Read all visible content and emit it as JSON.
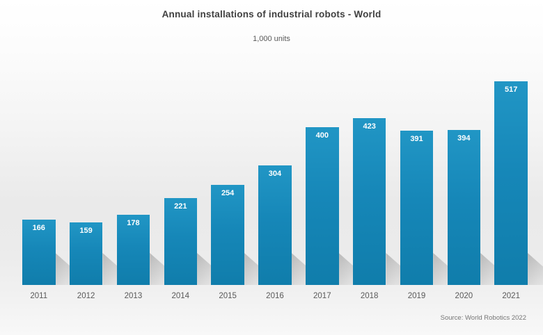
{
  "chart": {
    "title": "Annual installations of industrial robots - World",
    "subtitle": "1,000 units",
    "source": "Source: World Robotics 2022"
  },
  "chart_data": {
    "type": "bar",
    "title": "Annual installations of industrial robots - World",
    "subtitle": "1,000 units",
    "categories": [
      "2011",
      "2012",
      "2013",
      "2014",
      "2015",
      "2016",
      "2017",
      "2018",
      "2019",
      "2020",
      "2021"
    ],
    "values": [
      166,
      159,
      178,
      221,
      254,
      304,
      400,
      423,
      391,
      394,
      517
    ],
    "unit": "1,000 units",
    "xlabel": "",
    "ylabel": "",
    "ylim": [
      0,
      540
    ],
    "grid": false,
    "axes_visible": false,
    "value_labels_position": "inside-top",
    "legend": "none",
    "source": "Source: World Robotics 2022",
    "colors": {
      "bar": "#1687b8",
      "bar_top": "#2196c5",
      "value_label": "#ffffff",
      "title": "#3f3f3f",
      "axis_label": "#595959",
      "source_text": "#767676",
      "shadow": "#a9a9a9"
    }
  }
}
